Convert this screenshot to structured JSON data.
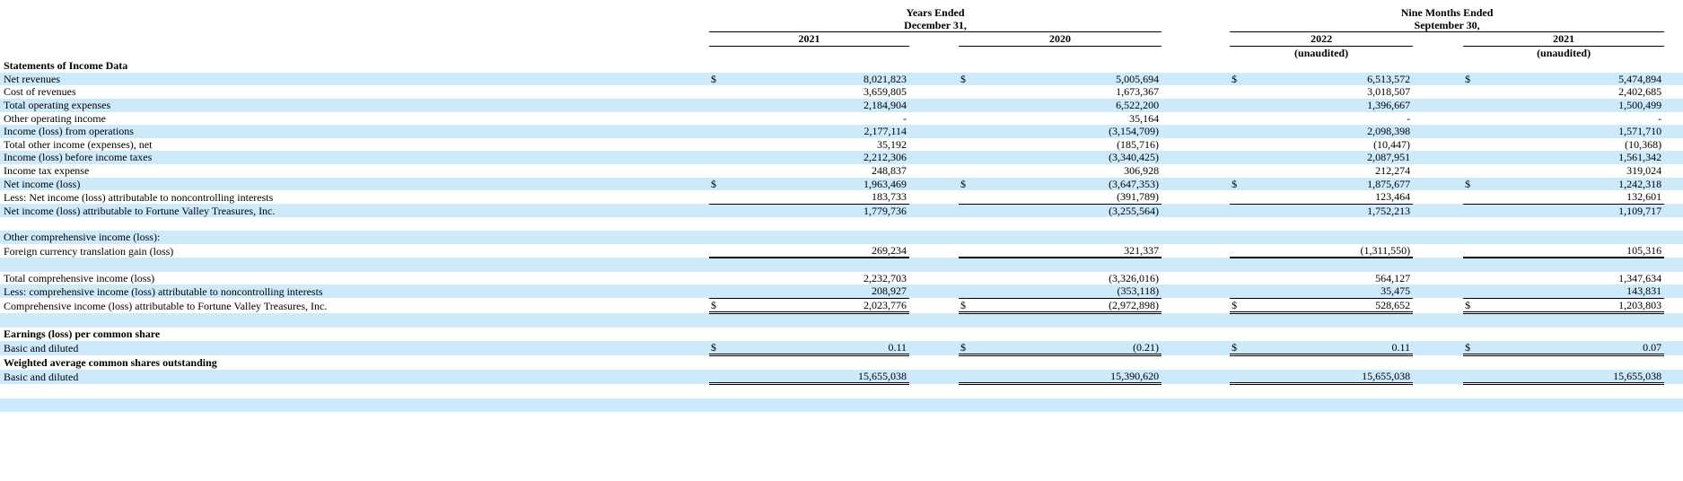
{
  "colors": {
    "stripe": "#cdeafa",
    "text": "#000000"
  },
  "currency_symbol": "$",
  "header": {
    "sg1": "Years Ended\nDecember 31,",
    "sg2": "Nine Months Ended\nSeptember 30,",
    "years": [
      "2021",
      "2020",
      "2022",
      "2021"
    ],
    "unaudited": "(unaudited)"
  },
  "rows": [
    {
      "label": "Statements of Income Data",
      "bold": true,
      "shade": false,
      "dollar": false,
      "values": null,
      "underline": "none"
    },
    {
      "label": "Net revenues",
      "bold": false,
      "shade": true,
      "dollar": true,
      "values": [
        "8,021,823",
        "5,005,694",
        "6,513,572",
        "5,474,894"
      ],
      "underline": "none"
    },
    {
      "label": "Cost of revenues",
      "bold": false,
      "shade": false,
      "dollar": false,
      "values": [
        "3,659,805",
        "1,673,367",
        "3,018,507",
        "2,402,685"
      ],
      "underline": "none"
    },
    {
      "label": "Total operating expenses",
      "bold": false,
      "shade": true,
      "dollar": false,
      "values": [
        "2,184,904",
        "6,522,200",
        "1,396,667",
        "1,500,499"
      ],
      "underline": "none"
    },
    {
      "label": "Other operating income",
      "bold": false,
      "shade": false,
      "dollar": false,
      "values": [
        "-",
        "35,164",
        "-",
        "-"
      ],
      "underline": "none"
    },
    {
      "label": "Income (loss) from operations",
      "bold": false,
      "shade": true,
      "dollar": false,
      "values": [
        "2,177,114",
        "(3,154,709)",
        "2,098,398",
        "1,571,710"
      ],
      "underline": "none"
    },
    {
      "label": "Total other income (expenses), net",
      "bold": false,
      "shade": false,
      "dollar": false,
      "values": [
        "35,192",
        "(185,716)",
        "(10,447)",
        "(10,368)"
      ],
      "underline": "none"
    },
    {
      "label": "Income (loss) before income taxes",
      "bold": false,
      "shade": true,
      "dollar": false,
      "values": [
        "2,212,306",
        "(3,340,425)",
        "2,087,951",
        "1,561,342"
      ],
      "underline": "none"
    },
    {
      "label": "Income tax expense",
      "bold": false,
      "shade": false,
      "dollar": false,
      "values": [
        "248,837",
        "306,928",
        "212,274",
        "319,024"
      ],
      "underline": "none"
    },
    {
      "label": "Net income (loss)",
      "bold": false,
      "shade": true,
      "dollar": true,
      "values": [
        "1,963,469",
        "(3,647,353)",
        "1,875,677",
        "1,242,318"
      ],
      "underline": "none"
    },
    {
      "label": "Less: Net income (loss) attributable to noncontrolling interests",
      "bold": false,
      "shade": false,
      "dollar": false,
      "values": [
        "183,733",
        "(391,789)",
        "123,464",
        "132,601"
      ],
      "underline": "single"
    },
    {
      "label": "Net income (loss) attributable to Fortune Valley Treasures, Inc.",
      "bold": false,
      "shade": true,
      "dollar": false,
      "values": [
        "1,779,736",
        "(3,255,564)",
        "1,752,213",
        "1,109,717"
      ],
      "underline": "none"
    },
    {
      "label": "",
      "bold": false,
      "shade": false,
      "dollar": false,
      "values": null,
      "underline": "none"
    },
    {
      "label": "Other comprehensive income (loss):",
      "bold": false,
      "shade": true,
      "dollar": false,
      "values": null,
      "underline": "none"
    },
    {
      "label": "Foreign currency translation gain (loss)",
      "bold": false,
      "shade": false,
      "dollar": false,
      "values": [
        "269,234",
        "321,337",
        "(1,311,550)",
        "105,316"
      ],
      "underline": "thick"
    },
    {
      "label": "",
      "bold": false,
      "shade": true,
      "dollar": false,
      "values": null,
      "underline": "none"
    },
    {
      "label": "Total comprehensive income (loss)",
      "bold": false,
      "shade": false,
      "dollar": false,
      "values": [
        "2,232,703",
        "(3,326,016)",
        "564,127",
        "1,347,634"
      ],
      "underline": "none"
    },
    {
      "label": "Less: comprehensive income (loss) attributable to noncontrolling interests",
      "bold": false,
      "shade": true,
      "dollar": false,
      "values": [
        "208,927",
        "(353,118)",
        "35,475",
        "143,831"
      ],
      "underline": "single"
    },
    {
      "label": "Comprehensive income (loss) attributable to Fortune Valley Treasures, Inc.",
      "bold": false,
      "shade": false,
      "dollar": true,
      "values": [
        "2,023,776",
        "(2,972,898)",
        "528,652",
        "1,203,803"
      ],
      "underline": "double"
    },
    {
      "label": "",
      "bold": false,
      "shade": true,
      "dollar": false,
      "values": null,
      "underline": "none"
    },
    {
      "label": "Earnings (loss) per common share",
      "bold": true,
      "shade": false,
      "dollar": false,
      "values": null,
      "underline": "none"
    },
    {
      "label": "Basic and diluted",
      "bold": false,
      "shade": true,
      "dollar": true,
      "values": [
        "0.11",
        "(0.21)",
        "0.11",
        "0.07"
      ],
      "underline": "double"
    },
    {
      "label": "Weighted average common shares outstanding",
      "bold": true,
      "shade": false,
      "dollar": false,
      "values": null,
      "underline": "none"
    },
    {
      "label": "Basic and diluted",
      "bold": false,
      "shade": true,
      "dollar": false,
      "values": [
        "15,655,038",
        "15,390,620",
        "15,655,038",
        "15,655,038"
      ],
      "underline": "double"
    },
    {
      "label": "",
      "bold": false,
      "shade": false,
      "dollar": false,
      "values": null,
      "underline": "none"
    },
    {
      "label": "",
      "bold": false,
      "shade": true,
      "dollar": false,
      "values": null,
      "underline": "none"
    }
  ]
}
